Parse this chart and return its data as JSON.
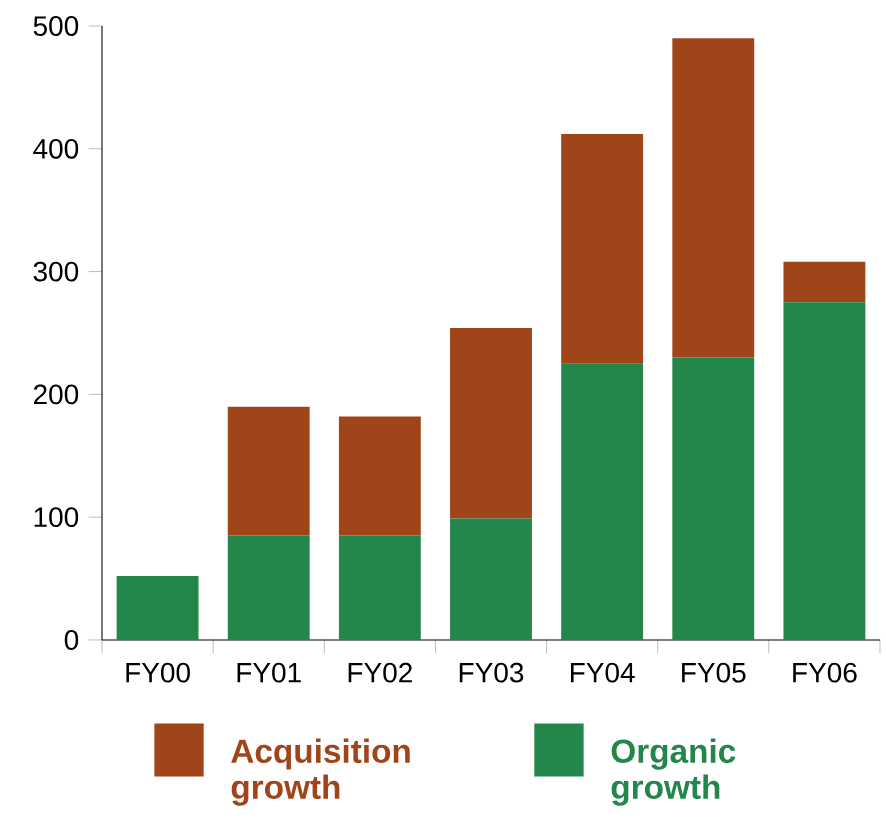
{
  "chart_data": {
    "type": "bar",
    "stacked": true,
    "categories": [
      "FY00",
      "FY01",
      "FY02",
      "FY03",
      "FY04",
      "FY05",
      "FY06"
    ],
    "series": [
      {
        "name": "Organic growth",
        "color": "#23864a",
        "values": [
          52,
          85,
          85,
          99,
          225,
          230,
          275
        ]
      },
      {
        "name": "Acquisition growth",
        "color": "#a0451a",
        "values": [
          0,
          105,
          97,
          155,
          187,
          260,
          33
        ]
      }
    ],
    "ylim": [
      0,
      500
    ],
    "yticks": [
      0,
      100,
      200,
      300,
      400,
      500
    ],
    "grid": false,
    "legend": "bottom"
  }
}
